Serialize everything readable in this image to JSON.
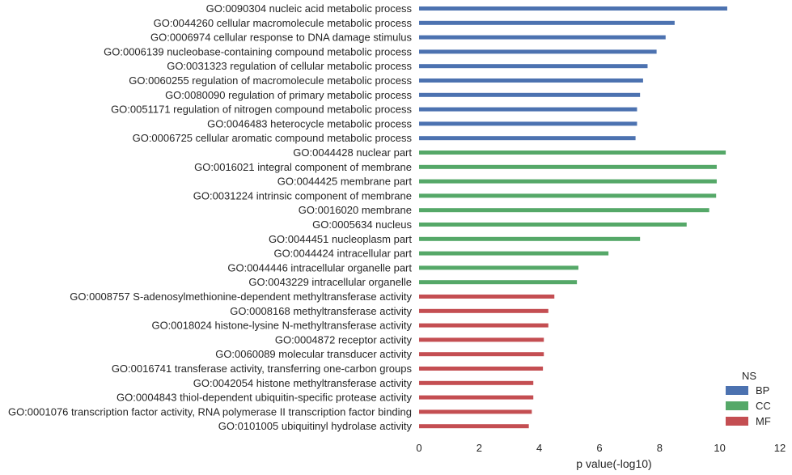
{
  "chart_data": {
    "type": "bar",
    "orientation": "horizontal",
    "xlabel": "p value(-log10)",
    "xlim": [
      0,
      12
    ],
    "xticks": [
      0,
      2,
      4,
      6,
      8,
      10,
      12
    ],
    "grid": false,
    "legend": {
      "title": "NS",
      "placement": "bottom-right",
      "entries": [
        {
          "name": "BP",
          "color": "#4c72b0"
        },
        {
          "name": "CC",
          "color": "#55a868"
        },
        {
          "name": "MF",
          "color": "#c44e52"
        }
      ]
    },
    "bars": [
      {
        "label": "GO:0090304 nucleic acid metabolic process",
        "value": 10.25,
        "ns": "BP"
      },
      {
        "label": "GO:0044260 cellular macromolecule metabolic process",
        "value": 8.5,
        "ns": "BP"
      },
      {
        "label": "GO:0006974 cellular response to DNA damage stimulus",
        "value": 8.2,
        "ns": "BP"
      },
      {
        "label": "GO:0006139 nucleobase-containing compound metabolic process",
        "value": 7.9,
        "ns": "BP"
      },
      {
        "label": "GO:0031323 regulation of cellular metabolic process",
        "value": 7.6,
        "ns": "BP"
      },
      {
        "label": "GO:0060255 regulation of macromolecule metabolic process",
        "value": 7.45,
        "ns": "BP"
      },
      {
        "label": "GO:0080090 regulation of primary metabolic process",
        "value": 7.35,
        "ns": "BP"
      },
      {
        "label": "GO:0051171 regulation of nitrogen compound metabolic process",
        "value": 7.25,
        "ns": "BP"
      },
      {
        "label": "GO:0046483 heterocycle metabolic process",
        "value": 7.25,
        "ns": "BP"
      },
      {
        "label": "GO:0006725 cellular aromatic compound metabolic process",
        "value": 7.2,
        "ns": "BP"
      },
      {
        "label": "GO:0044428 nuclear part",
        "value": 10.2,
        "ns": "CC"
      },
      {
        "label": "GO:0016021 integral component of membrane",
        "value": 9.9,
        "ns": "CC"
      },
      {
        "label": "GO:0044425 membrane part",
        "value": 9.9,
        "ns": "CC"
      },
      {
        "label": "GO:0031224 intrinsic component of membrane",
        "value": 9.88,
        "ns": "CC"
      },
      {
        "label": "GO:0016020 membrane",
        "value": 9.65,
        "ns": "CC"
      },
      {
        "label": "GO:0005634 nucleus",
        "value": 8.9,
        "ns": "CC"
      },
      {
        "label": "GO:0044451 nucleoplasm part",
        "value": 7.35,
        "ns": "CC"
      },
      {
        "label": "GO:0044424 intracellular part",
        "value": 6.3,
        "ns": "CC"
      },
      {
        "label": "GO:0044446 intracellular organelle part",
        "value": 5.3,
        "ns": "CC"
      },
      {
        "label": "GO:0043229 intracellular organelle",
        "value": 5.25,
        "ns": "CC"
      },
      {
        "label": "GO:0008757 S-adenosylmethionine-dependent methyltransferase activity",
        "value": 4.5,
        "ns": "MF"
      },
      {
        "label": "GO:0008168 methyltransferase activity",
        "value": 4.3,
        "ns": "MF"
      },
      {
        "label": "GO:0018024 histone-lysine N-methyltransferase activity",
        "value": 4.3,
        "ns": "MF"
      },
      {
        "label": "GO:0004872 receptor activity",
        "value": 4.15,
        "ns": "MF"
      },
      {
        "label": "GO:0060089 molecular transducer activity",
        "value": 4.15,
        "ns": "MF"
      },
      {
        "label": "GO:0016741 transferase activity, transferring one-carbon groups",
        "value": 4.12,
        "ns": "MF"
      },
      {
        "label": "GO:0042054 histone methyltransferase activity",
        "value": 3.8,
        "ns": "MF"
      },
      {
        "label": "GO:0004843 thiol-dependent ubiquitin-specific protease activity",
        "value": 3.8,
        "ns": "MF"
      },
      {
        "label": "GO:0001076 transcription factor activity, RNA polymerase II transcription factor binding",
        "value": 3.75,
        "ns": "MF"
      },
      {
        "label": "GO:0101005 ubiquitinyl hydrolase activity",
        "value": 3.65,
        "ns": "MF"
      }
    ]
  }
}
